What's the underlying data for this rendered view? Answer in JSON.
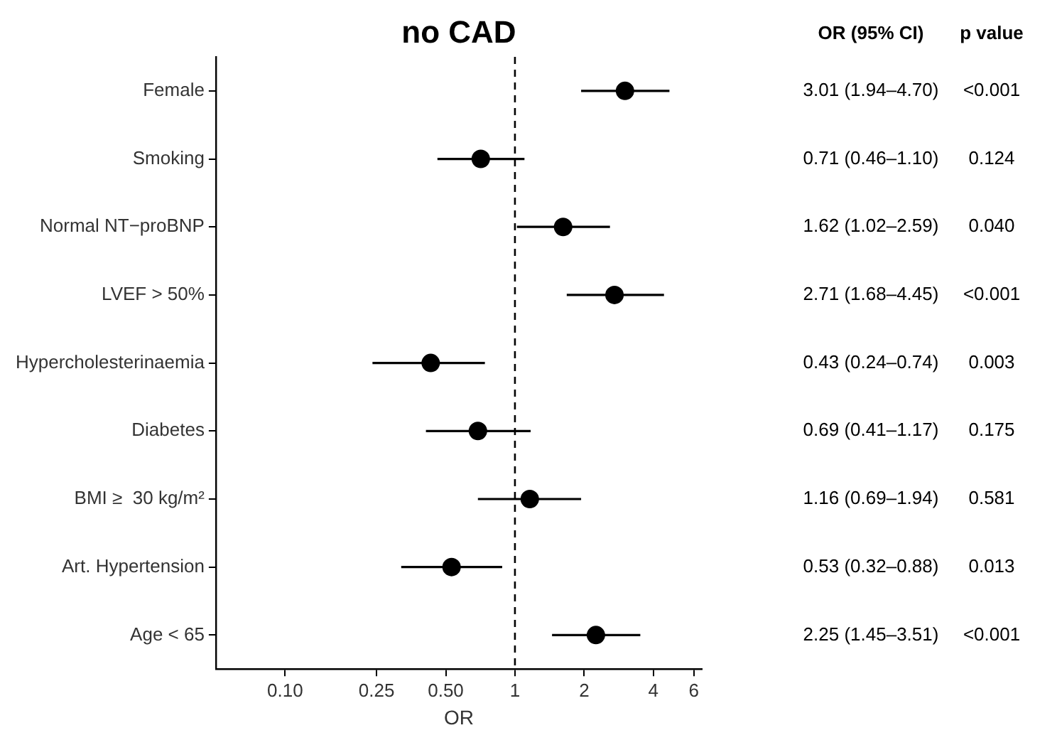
{
  "chart_data": {
    "type": "scatter",
    "title": "no CAD",
    "xlabel": "OR",
    "orientation": "horizontal",
    "categories": [
      "Female",
      "Smoking",
      "Normal NT−proBNP",
      "LVEF > 50%",
      "Hypercholesterinaemia",
      "Diabetes",
      "BMI ≥  30 kg/m²",
      "Art. Hypertension",
      "Age < 65"
    ],
    "series": [
      {
        "color": "#000000",
        "values": [
          3.01,
          0.71,
          1.62,
          2.71,
          0.43,
          0.69,
          1.16,
          0.53,
          2.25
        ],
        "errors": [
          [
            1.94,
            4.7
          ],
          [
            0.46,
            1.1
          ],
          [
            1.02,
            2.59
          ],
          [
            1.68,
            4.45
          ],
          [
            0.24,
            0.74
          ],
          [
            0.41,
            1.17
          ],
          [
            0.69,
            1.94
          ],
          [
            0.32,
            0.88
          ],
          [
            1.45,
            3.51
          ]
        ],
        "value_labels": [
          "3.01 (1.94–4.70)",
          "0.71 (0.46–1.10)",
          "1.62 (1.02–2.59)",
          "2.71 (1.68–4.45)",
          "0.43 (0.24–0.74)",
          "0.69 (0.41–1.17)",
          "1.16 (0.69–1.94)",
          "0.53 (0.32–0.88)",
          "2.25 (1.45–3.51)"
        ]
      }
    ],
    "annotations": [
      "OR (95% CI)",
      "p value",
      "<0.001",
      "0.124",
      "0.040",
      "<0.001",
      "0.003",
      "0.175",
      "0.581",
      "0.013",
      "<0.001"
    ],
    "log": "x",
    "xlim": [
      0.05,
      6.5
    ],
    "xticks": [
      {
        "value": 0.1,
        "label": "0.10"
      },
      0.25,
      {
        "value": 0.5,
        "label": "0.50"
      },
      1,
      2,
      4,
      6
    ],
    "ref_lines": [
      {
        "axis": "x",
        "value": 1,
        "line_style": "dashed",
        "color": "#000000"
      }
    ],
    "grid": false,
    "legend": false,
    "marker": "circle"
  }
}
